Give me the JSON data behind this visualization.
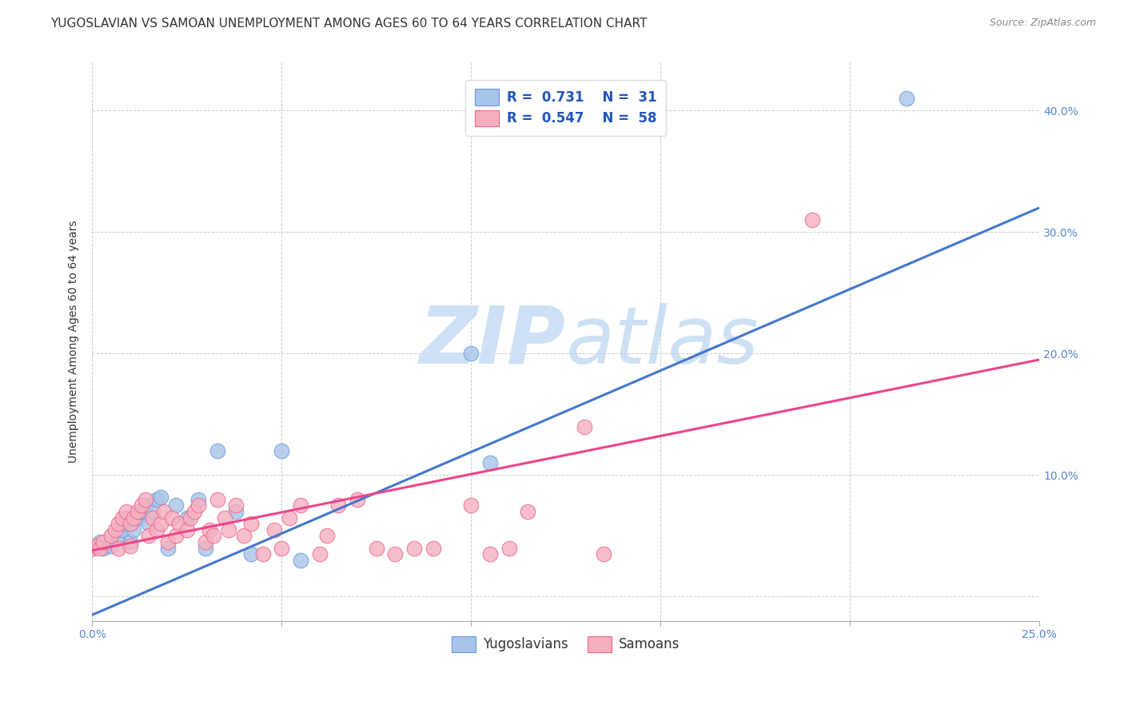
{
  "title": "YUGOSLAVIAN VS SAMOAN UNEMPLOYMENT AMONG AGES 60 TO 64 YEARS CORRELATION CHART",
  "source": "Source: ZipAtlas.com",
  "ylabel": "Unemployment Among Ages 60 to 64 years",
  "xlabel_ticks": [
    "0.0%",
    "25.0%"
  ],
  "ylabel_ticks_right": [
    "40.0%",
    "30.0%",
    "20.0%",
    "10.0%"
  ],
  "xlim": [
    0.0,
    0.25
  ],
  "ylim": [
    -0.02,
    0.44
  ],
  "yugo_color": "#a8c4e8",
  "samoan_color": "#f5b0c0",
  "yugo_edge_color": "#6699dd",
  "samoan_edge_color": "#ee6688",
  "yugo_line_color": "#4477cc",
  "samoan_line_color": "#ee4488",
  "legend_line1": "R =  0.731    N =  31",
  "legend_line2": "R =  0.547    N =  58",
  "yugo_scatter_x": [
    0.0,
    0.002,
    0.003,
    0.005,
    0.007,
    0.008,
    0.008,
    0.009,
    0.01,
    0.01,
    0.011,
    0.012,
    0.013,
    0.014,
    0.015,
    0.016,
    0.017,
    0.018,
    0.02,
    0.022,
    0.025,
    0.028,
    0.03,
    0.033,
    0.038,
    0.042,
    0.05,
    0.055,
    0.1,
    0.105,
    0.215
  ],
  "yugo_scatter_y": [
    0.04,
    0.045,
    0.04,
    0.042,
    0.05,
    0.055,
    0.06,
    0.065,
    0.045,
    0.06,
    0.055,
    0.065,
    0.07,
    0.075,
    0.06,
    0.07,
    0.08,
    0.082,
    0.04,
    0.075,
    0.065,
    0.08,
    0.04,
    0.12,
    0.07,
    0.035,
    0.12,
    0.03,
    0.2,
    0.11,
    0.41
  ],
  "samoan_scatter_x": [
    0.0,
    0.001,
    0.002,
    0.003,
    0.005,
    0.006,
    0.007,
    0.007,
    0.008,
    0.009,
    0.01,
    0.01,
    0.011,
    0.012,
    0.013,
    0.014,
    0.015,
    0.016,
    0.017,
    0.018,
    0.019,
    0.02,
    0.021,
    0.022,
    0.023,
    0.025,
    0.026,
    0.027,
    0.028,
    0.03,
    0.031,
    0.032,
    0.033,
    0.035,
    0.036,
    0.038,
    0.04,
    0.042,
    0.045,
    0.048,
    0.05,
    0.052,
    0.055,
    0.06,
    0.062,
    0.065,
    0.07,
    0.075,
    0.08,
    0.085,
    0.09,
    0.1,
    0.105,
    0.11,
    0.115,
    0.13,
    0.135,
    0.19
  ],
  "samoan_scatter_y": [
    0.04,
    0.042,
    0.04,
    0.045,
    0.05,
    0.055,
    0.04,
    0.06,
    0.065,
    0.07,
    0.042,
    0.06,
    0.065,
    0.07,
    0.075,
    0.08,
    0.05,
    0.065,
    0.055,
    0.06,
    0.07,
    0.045,
    0.065,
    0.05,
    0.06,
    0.055,
    0.065,
    0.07,
    0.075,
    0.045,
    0.055,
    0.05,
    0.08,
    0.065,
    0.055,
    0.075,
    0.05,
    0.06,
    0.035,
    0.055,
    0.04,
    0.065,
    0.075,
    0.035,
    0.05,
    0.075,
    0.08,
    0.04,
    0.035,
    0.04,
    0.04,
    0.075,
    0.035,
    0.04,
    0.07,
    0.14,
    0.035,
    0.31
  ],
  "yugo_line_x": [
    0.0,
    0.25
  ],
  "yugo_line_y": [
    -0.015,
    0.32
  ],
  "samoan_line_x": [
    0.0,
    0.25
  ],
  "samoan_line_y": [
    0.038,
    0.195
  ],
  "background_color": "#ffffff",
  "grid_color": "#cccccc",
  "watermark_color": "#cde0f5",
  "title_fontsize": 11,
  "axis_label_fontsize": 10,
  "tick_fontsize": 10,
  "legend_fontsize": 12
}
